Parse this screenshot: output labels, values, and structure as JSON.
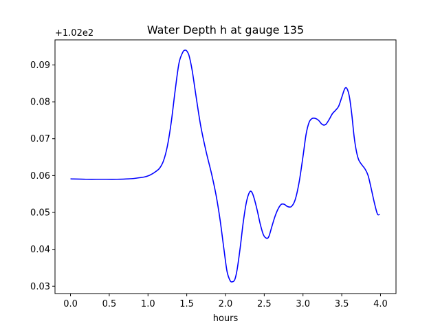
{
  "chart_data": {
    "type": "line",
    "title": "Water Depth h at gauge 135",
    "xlabel": "hours",
    "ylabel": "",
    "y_offset_label": "+1.02e2",
    "xlim": [
      -0.2,
      4.2
    ],
    "ylim": [
      0.028,
      0.0968
    ],
    "x_ticks": [
      0.0,
      0.5,
      1.0,
      1.5,
      2.0,
      2.5,
      3.0,
      3.5,
      4.0
    ],
    "x_tick_labels": [
      "0.0",
      "0.5",
      "1.0",
      "1.5",
      "2.0",
      "2.5",
      "3.0",
      "3.5",
      "4.0"
    ],
    "y_ticks": [
      0.03,
      0.04,
      0.05,
      0.06,
      0.07,
      0.08,
      0.09
    ],
    "y_tick_labels": [
      "0.03",
      "0.04",
      "0.05",
      "0.06",
      "0.07",
      "0.08",
      "0.09"
    ],
    "grid": false,
    "legend": "none",
    "series": [
      {
        "color": "#0000ff",
        "x": [
          0.0,
          0.2,
          0.4,
          0.6,
          0.75,
          0.85,
          0.95,
          1.0,
          1.05,
          1.1,
          1.15,
          1.2,
          1.25,
          1.3,
          1.35,
          1.4,
          1.45,
          1.48,
          1.5,
          1.53,
          1.57,
          1.62,
          1.68,
          1.75,
          1.82,
          1.88,
          1.93,
          1.98,
          2.02,
          2.06,
          2.09,
          2.12,
          2.15,
          2.19,
          2.23,
          2.27,
          2.31,
          2.34,
          2.37,
          2.41,
          2.45,
          2.49,
          2.53,
          2.56,
          2.6,
          2.64,
          2.68,
          2.72,
          2.76,
          2.8,
          2.85,
          2.9,
          2.95,
          3.0,
          3.04,
          3.08,
          3.12,
          3.16,
          3.2,
          3.24,
          3.27,
          3.3,
          3.34,
          3.38,
          3.42,
          3.46,
          3.5,
          3.54,
          3.57,
          3.6,
          3.63,
          3.66,
          3.69,
          3.72,
          3.76,
          3.8,
          3.84,
          3.88,
          3.92,
          3.96,
          3.99
        ],
        "y": [
          0.0591,
          0.059,
          0.059,
          0.059,
          0.0591,
          0.0593,
          0.0596,
          0.0599,
          0.0604,
          0.0611,
          0.062,
          0.064,
          0.068,
          0.0745,
          0.083,
          0.0905,
          0.0935,
          0.094,
          0.0938,
          0.0925,
          0.0885,
          0.0815,
          0.0735,
          0.0665,
          0.0605,
          0.0545,
          0.048,
          0.04,
          0.034,
          0.0315,
          0.0312,
          0.0318,
          0.0345,
          0.0405,
          0.0475,
          0.0528,
          0.0555,
          0.0555,
          0.0538,
          0.0505,
          0.0467,
          0.0439,
          0.043,
          0.0435,
          0.0463,
          0.049,
          0.051,
          0.0522,
          0.0522,
          0.0516,
          0.0516,
          0.0535,
          0.0582,
          0.0652,
          0.0712,
          0.0745,
          0.0755,
          0.0755,
          0.075,
          0.074,
          0.0737,
          0.074,
          0.0753,
          0.0768,
          0.0777,
          0.0788,
          0.0812,
          0.0836,
          0.0835,
          0.0812,
          0.0765,
          0.0705,
          0.0665,
          0.0642,
          0.0629,
          0.0618,
          0.06,
          0.0565,
          0.0527,
          0.0496,
          0.0495
        ]
      }
    ]
  }
}
